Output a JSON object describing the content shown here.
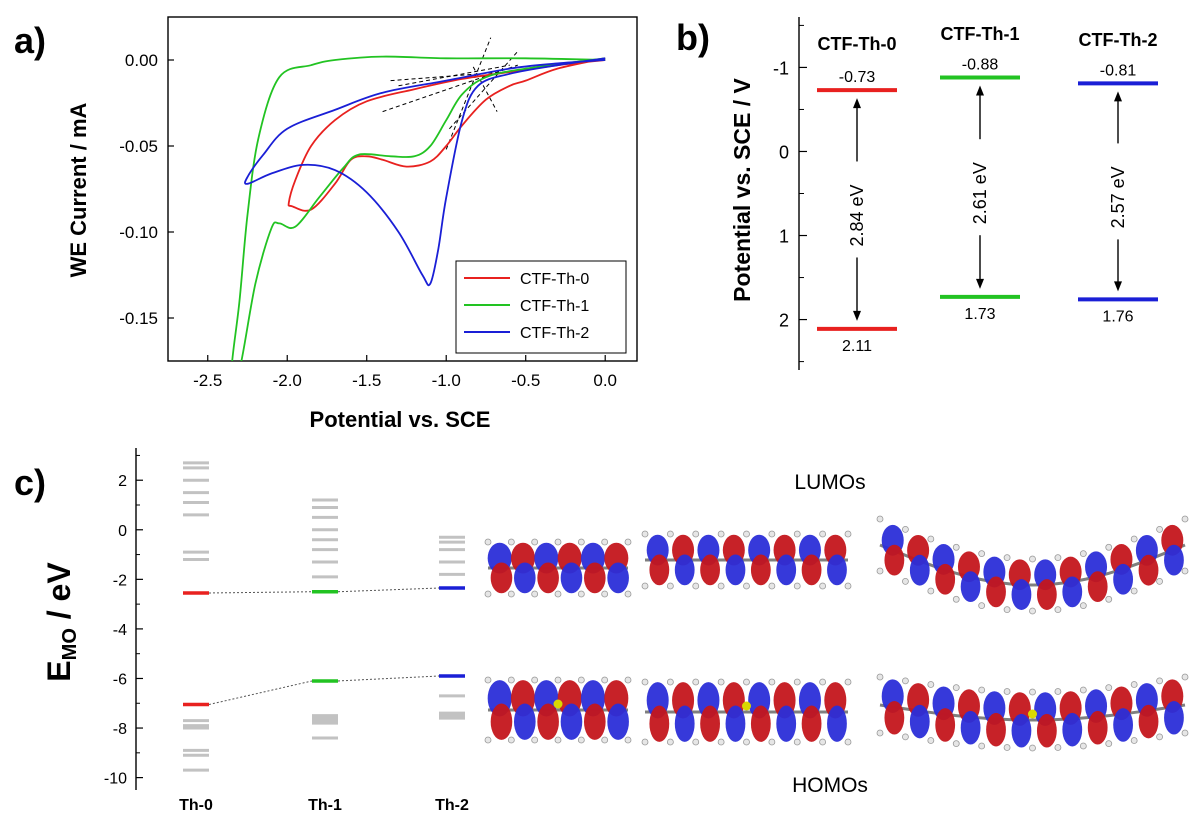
{
  "panel_labels": {
    "a": "a)",
    "b": "b)",
    "c": "c)"
  },
  "colors": {
    "red": "#e8211f",
    "green": "#22c322",
    "blue": "#1a1fd6",
    "gray": "#c2c2c2",
    "black": "#000000"
  },
  "chart_data": [
    {
      "panel": "a",
      "type": "line",
      "title": "",
      "xlabel": "Potential vs. SCE",
      "ylabel": "WE Current / mA",
      "xlim": [
        -2.75,
        0.2
      ],
      "ylim": [
        -0.175,
        0.025
      ],
      "x_ticks": [
        "-2.5",
        "-2.0",
        "-1.5",
        "-1.0",
        "-0.5",
        "0.0"
      ],
      "x_tick_values": [
        -2.5,
        -2.0,
        -1.5,
        -1.0,
        -0.5,
        0.0
      ],
      "y_ticks": [
        "0.00",
        "-0.05",
        "-0.10",
        "-0.15"
      ],
      "y_tick_values": [
        0.0,
        -0.05,
        -0.1,
        -0.15
      ],
      "legend_position": "bottom-right",
      "series": [
        {
          "name": "CTF-Th-0",
          "color": "#e8211f",
          "points": [
            [
              0.0,
              0.001
            ],
            [
              -0.3,
              -0.005
            ],
            [
              -0.5,
              -0.012
            ],
            [
              -0.6,
              -0.015
            ],
            [
              -0.75,
              -0.023
            ],
            [
              -0.9,
              -0.038
            ],
            [
              -1.0,
              -0.05
            ],
            [
              -1.1,
              -0.059
            ],
            [
              -1.25,
              -0.062
            ],
            [
              -1.4,
              -0.058
            ],
            [
              -1.5,
              -0.056
            ],
            [
              -1.6,
              -0.058
            ],
            [
              -1.7,
              -0.072
            ],
            [
              -1.85,
              -0.087
            ],
            [
              -1.97,
              -0.085
            ],
            [
              -1.99,
              -0.083
            ],
            [
              -1.95,
              -0.07
            ],
            [
              -1.85,
              -0.05
            ],
            [
              -1.7,
              -0.035
            ],
            [
              -1.5,
              -0.024
            ],
            [
              -1.2,
              -0.017
            ],
            [
              -0.9,
              -0.011
            ],
            [
              -0.6,
              -0.007
            ],
            [
              -0.3,
              -0.003
            ],
            [
              0.0,
              0.0
            ]
          ]
        },
        {
          "name": "CTF-Th-1",
          "color": "#22c322",
          "points": [
            [
              0.0,
              0.001
            ],
            [
              -0.5,
              -0.005
            ],
            [
              -0.75,
              -0.01
            ],
            [
              -0.9,
              -0.02
            ],
            [
              -1.0,
              -0.035
            ],
            [
              -1.1,
              -0.05
            ],
            [
              -1.2,
              -0.056
            ],
            [
              -1.35,
              -0.056
            ],
            [
              -1.55,
              -0.055
            ],
            [
              -1.65,
              -0.063
            ],
            [
              -1.8,
              -0.08
            ],
            [
              -1.95,
              -0.097
            ],
            [
              -2.05,
              -0.095
            ],
            [
              -2.1,
              -0.098
            ],
            [
              -2.2,
              -0.13
            ],
            [
              -2.3,
              -0.18
            ],
            [
              -2.35,
              -0.18
            ],
            [
              -2.3,
              -0.14
            ],
            [
              -2.25,
              -0.09
            ],
            [
              -2.18,
              -0.045
            ],
            [
              -2.05,
              -0.01
            ],
            [
              -1.85,
              -0.003
            ],
            [
              -1.7,
              0.0
            ],
            [
              -1.4,
              0.002
            ],
            [
              -1.0,
              0.001
            ],
            [
              -0.5,
              0.001
            ],
            [
              0.0,
              0.0
            ]
          ]
        },
        {
          "name": "CTF-Th-2",
          "color": "#1a1fd6",
          "points": [
            [
              0.0,
              0.001
            ],
            [
              -0.3,
              -0.003
            ],
            [
              -0.6,
              -0.008
            ],
            [
              -0.8,
              -0.015
            ],
            [
              -0.9,
              -0.035
            ],
            [
              -1.0,
              -0.08
            ],
            [
              -1.05,
              -0.11
            ],
            [
              -1.1,
              -0.13
            ],
            [
              -1.15,
              -0.125
            ],
            [
              -1.3,
              -0.1
            ],
            [
              -1.5,
              -0.077
            ],
            [
              -1.7,
              -0.064
            ],
            [
              -1.9,
              -0.061
            ],
            [
              -2.1,
              -0.066
            ],
            [
              -2.25,
              -0.072
            ],
            [
              -2.25,
              -0.068
            ],
            [
              -2.15,
              -0.055
            ],
            [
              -2.0,
              -0.04
            ],
            [
              -1.7,
              -0.029
            ],
            [
              -1.4,
              -0.019
            ],
            [
              -1.0,
              -0.012
            ],
            [
              -0.6,
              -0.005
            ],
            [
              -0.3,
              -0.002
            ],
            [
              0.0,
              0.0
            ]
          ]
        }
      ],
      "guide_lines": [
        [
          [
            -1.4,
            -0.03
          ],
          [
            -0.55,
            -0.003
          ]
        ],
        [
          [
            -1.35,
            -0.012
          ],
          [
            -0.5,
            -0.006
          ]
        ],
        [
          [
            -1.3,
            -0.015
          ],
          [
            -0.6,
            -0.003
          ]
        ],
        [
          [
            -1.0,
            -0.052
          ],
          [
            -0.72,
            0.013
          ]
        ],
        [
          [
            -0.98,
            -0.04
          ],
          [
            -0.55,
            0.005
          ]
        ],
        [
          [
            -0.83,
            -0.004
          ],
          [
            -0.68,
            -0.03
          ]
        ]
      ]
    },
    {
      "panel": "b",
      "type": "bar",
      "title": "",
      "xlabel": "",
      "ylabel": "Potential vs. SCE / V",
      "ylim": [
        2.6,
        -1.6
      ],
      "y_ticks": [
        "-1",
        "0",
        "1",
        "2"
      ],
      "y_tick_values": [
        -1,
        0,
        1,
        2
      ],
      "categories": [
        "CTF-Th-0",
        "CTF-Th-1",
        "CTF-Th-2"
      ],
      "series": [
        {
          "name": "LUMO",
          "values": [
            -0.73,
            -0.88,
            -0.81
          ]
        },
        {
          "name": "HOMO",
          "values": [
            2.11,
            1.73,
            1.76
          ]
        }
      ],
      "lumo_labels": [
        "-0.73",
        "-0.88",
        "-0.81"
      ],
      "homo_labels": [
        "2.11",
        "1.73",
        "1.76"
      ],
      "gap_labels": [
        "2.84 eV",
        "2.61 eV",
        "2.57 eV"
      ],
      "colors": [
        "#e8211f",
        "#22c322",
        "#1a1fd6"
      ]
    },
    {
      "panel": "c",
      "type": "scatter",
      "title": "",
      "ylabel_main": "E",
      "ylabel_sub": "MO",
      "ylabel_unit": " / eV",
      "ylim": [
        -10.5,
        3.3
      ],
      "y_ticks": [
        "2",
        "0",
        "-2",
        "-4",
        "-6",
        "-8",
        "-10"
      ],
      "y_tick_values": [
        2,
        0,
        -2,
        -4,
        -6,
        -8,
        -10
      ],
      "categories": [
        "Th-0",
        "Th-1",
        "Th-2"
      ],
      "lumo": [
        -2.55,
        -2.5,
        -2.35
      ],
      "homo": [
        -7.05,
        -6.1,
        -5.9
      ],
      "colors": [
        "#e8211f",
        "#22c322",
        "#1a1fd6"
      ],
      "unoccupied_levels": [
        [
          2.7,
          2.5,
          2.0,
          1.5,
          1.1,
          0.6,
          -0.9,
          -1.2
        ],
        [
          1.2,
          0.9,
          0.5,
          0.0,
          -0.4,
          -0.8,
          -1.3,
          -1.9
        ],
        [
          -0.3,
          -0.5,
          -0.8,
          -1.3,
          -1.8
        ]
      ],
      "occupied_levels": [
        [
          -7.7,
          -7.9,
          -8.0,
          -8.9,
          -9.1,
          -9.7
        ],
        [
          -7.5,
          -7.6,
          -7.7,
          -7.8,
          -8.4
        ],
        [
          -6.7,
          -7.4,
          -7.5,
          -7.6
        ]
      ],
      "lumo_caption": "LUMOs",
      "homo_caption": "HOMOs"
    }
  ]
}
